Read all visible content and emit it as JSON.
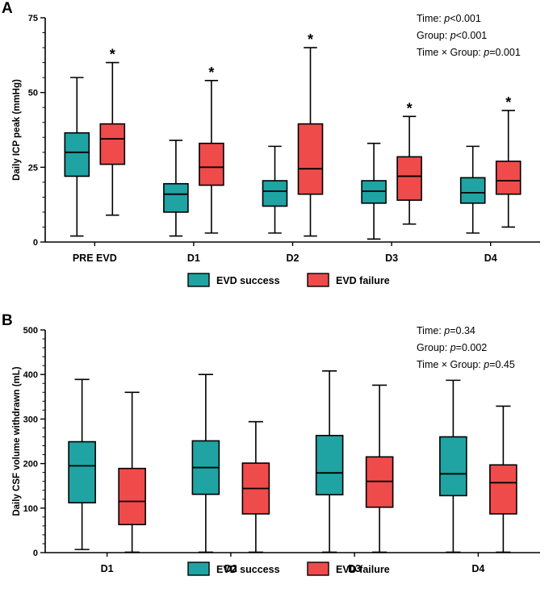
{
  "colors": {
    "success": "#1fa3a3",
    "failure": "#ef4b4b",
    "axis": "#000000"
  },
  "chart_data": [
    {
      "panel_label": "A",
      "type": "box",
      "ylabel": "Daily ICP peak (mmHg)",
      "xlabel": "",
      "ylim": [
        0,
        75
      ],
      "yticks": [
        0,
        25,
        50,
        75
      ],
      "categories": [
        "PRE EVD",
        "D1",
        "D2",
        "D3",
        "D4"
      ],
      "legend": {
        "placement": "bottom",
        "entries": [
          "EVD success",
          "EVD failure"
        ]
      },
      "stats": [
        {
          "prefix": "Time: ",
          "p": "p",
          "value": "<0.001"
        },
        {
          "prefix": "Group: ",
          "p": "p",
          "value": "<0.001"
        },
        {
          "prefix": "Time × Group: ",
          "p": "p",
          "value": "=0.001"
        }
      ],
      "significance_marker": "*",
      "series": [
        {
          "name": "EVD success",
          "color": "#1fa3a3",
          "boxes": [
            {
              "min": 2,
              "q1": 22,
              "median": 30,
              "q3": 36.5,
              "max": 55
            },
            {
              "min": 2,
              "q1": 10,
              "median": 16,
              "q3": 19.5,
              "max": 34
            },
            {
              "min": 3,
              "q1": 12,
              "median": 17,
              "q3": 20.5,
              "max": 32
            },
            {
              "min": 1,
              "q1": 13,
              "median": 17,
              "q3": 20.5,
              "max": 33
            },
            {
              "min": 3,
              "q1": 13,
              "median": 16.5,
              "q3": 21.5,
              "max": 32
            }
          ]
        },
        {
          "name": "EVD failure",
          "color": "#ef4b4b",
          "significant": [
            true,
            true,
            true,
            true,
            true
          ],
          "boxes": [
            {
              "min": 9,
              "q1": 26,
              "median": 34.5,
              "q3": 39.5,
              "max": 60
            },
            {
              "min": 3,
              "q1": 19,
              "median": 25,
              "q3": 33,
              "max": 54
            },
            {
              "min": 2,
              "q1": 16,
              "median": 24.5,
              "q3": 39.5,
              "max": 65
            },
            {
              "min": 6,
              "q1": 14,
              "median": 22,
              "q3": 28.5,
              "max": 42
            },
            {
              "min": 5,
              "q1": 16,
              "median": 20.5,
              "q3": 27,
              "max": 44
            }
          ]
        }
      ]
    },
    {
      "panel_label": "B",
      "type": "box",
      "ylabel": "Daily CSF volume withdrawn (mL)",
      "xlabel": "",
      "ylim": [
        0,
        500
      ],
      "yticks": [
        0,
        100,
        200,
        300,
        400,
        500
      ],
      "categories": [
        "D1",
        "D2",
        "D3",
        "D4"
      ],
      "legend": {
        "placement": "bottom",
        "entries": [
          "EVD success",
          "EVD failure"
        ]
      },
      "stats": [
        {
          "prefix": "Time: ",
          "p": "p",
          "value": "=0.34"
        },
        {
          "prefix": "Group: ",
          "p": "p",
          "value": "=0.002"
        },
        {
          "prefix": "Time × Group: ",
          "p": "p",
          "value": "=0.45"
        }
      ],
      "series": [
        {
          "name": "EVD success",
          "color": "#1fa3a3",
          "boxes": [
            {
              "min": 7,
              "q1": 112,
              "median": 195,
              "q3": 249,
              "max": 389
            },
            {
              "min": 1,
              "q1": 131,
              "median": 191,
              "q3": 251,
              "max": 400
            },
            {
              "min": 1,
              "q1": 130,
              "median": 179,
              "q3": 263,
              "max": 408
            },
            {
              "min": 1,
              "q1": 128,
              "median": 177,
              "q3": 260,
              "max": 387
            }
          ]
        },
        {
          "name": "EVD failure",
          "color": "#ef4b4b",
          "boxes": [
            {
              "min": 1,
              "q1": 63,
              "median": 115,
              "q3": 189,
              "max": 360
            },
            {
              "min": 1,
              "q1": 87,
              "median": 144,
              "q3": 201,
              "max": 294
            },
            {
              "min": 1,
              "q1": 102,
              "median": 160,
              "q3": 215,
              "max": 376
            },
            {
              "min": 1,
              "q1": 87,
              "median": 157,
              "q3": 197,
              "max": 329
            }
          ]
        }
      ]
    }
  ]
}
